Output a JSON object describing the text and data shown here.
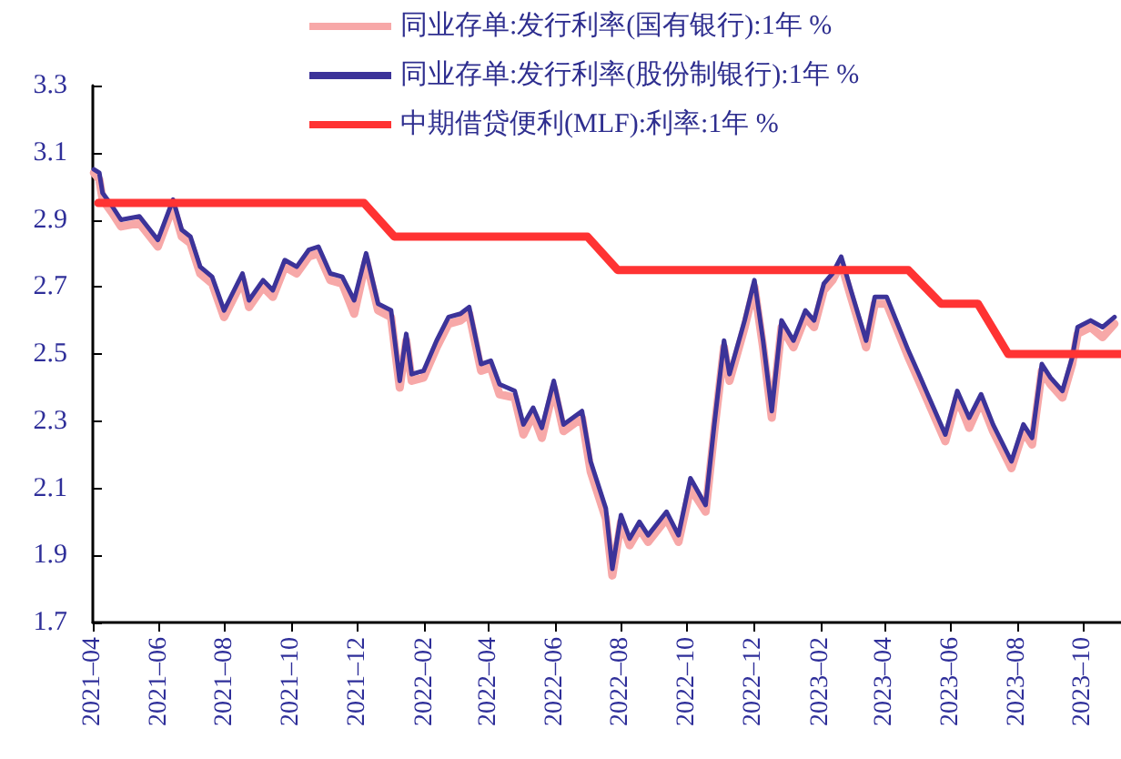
{
  "chart_data": {
    "type": "line",
    "xlim": [
      "2021-04-01",
      "2023-11-05"
    ],
    "ylim": [
      1.7,
      3.3
    ],
    "yticks": [
      1.7,
      1.9,
      2.1,
      2.3,
      2.5,
      2.7,
      2.9,
      3.1,
      3.3
    ],
    "xticks": [
      {
        "value": "2021-04",
        "label": "2021–04"
      },
      {
        "value": "2021-06",
        "label": "2021–06"
      },
      {
        "value": "2021-08",
        "label": "2021–08"
      },
      {
        "value": "2021-10",
        "label": "2021–10"
      },
      {
        "value": "2021-12",
        "label": "2021–12"
      },
      {
        "value": "2022-02",
        "label": "2022–02"
      },
      {
        "value": "2022-04",
        "label": "2022–04"
      },
      {
        "value": "2022-06",
        "label": "2022–06"
      },
      {
        "value": "2022-08",
        "label": "2022–08"
      },
      {
        "value": "2022-10",
        "label": "2022–10"
      },
      {
        "value": "2022-12",
        "label": "2022–12"
      },
      {
        "value": "2023-02",
        "label": "2023–02"
      },
      {
        "value": "2023-04",
        "label": "2023–04"
      },
      {
        "value": "2023-06",
        "label": "2023–06"
      },
      {
        "value": "2023-08",
        "label": "2023–08"
      },
      {
        "value": "2023-10",
        "label": "2023–10"
      }
    ],
    "x": [
      "2021-04-02",
      "2021-04-07",
      "2021-04-10",
      "2021-04-19",
      "2021-04-27",
      "2021-05-14",
      "2021-05-31",
      "2021-06-14",
      "2021-06-22",
      "2021-06-30",
      "2021-07-09",
      "2021-07-20",
      "2021-07-31",
      "2021-08-17",
      "2021-08-23",
      "2021-09-05",
      "2021-09-14",
      "2021-09-25",
      "2021-10-06",
      "2021-10-17",
      "2021-10-26",
      "2021-11-06",
      "2021-11-17",
      "2021-11-28",
      "2021-12-09",
      "2021-12-20",
      "2022-01-01",
      "2022-01-09",
      "2022-01-15",
      "2022-01-20",
      "2022-01-31",
      "2022-02-12",
      "2022-02-23",
      "2022-03-06",
      "2022-03-14",
      "2022-03-25",
      "2022-04-03",
      "2022-04-11",
      "2022-04-25",
      "2022-05-03",
      "2022-05-12",
      "2022-05-20",
      "2022-05-31",
      "2022-06-09",
      "2022-06-26",
      "2022-07-04",
      "2022-07-18",
      "2022-07-24",
      "2022-08-01",
      "2022-08-09",
      "2022-08-18",
      "2022-08-26",
      "2022-09-12",
      "2022-09-23",
      "2022-10-04",
      "2022-10-18",
      "2022-10-26",
      "2022-11-04",
      "2022-11-09",
      "2022-11-23",
      "2022-12-02",
      "2022-12-10",
      "2022-12-18",
      "2022-12-27",
      "2023-01-07",
      "2023-01-18",
      "2023-01-26",
      "2023-02-04",
      "2023-02-12",
      "2023-02-20",
      "2023-03-01",
      "2023-03-15",
      "2023-03-23",
      "2023-04-03",
      "2023-04-23",
      "2023-05-04",
      "2023-05-27",
      "2023-06-07",
      "2023-06-18",
      "2023-06-29",
      "2023-07-10",
      "2023-07-27",
      "2023-08-07",
      "2023-08-15",
      "2023-08-24",
      "2023-09-01",
      "2023-09-12",
      "2023-09-21",
      "2023-09-26",
      "2023-10-08",
      "2023-10-19",
      "2023-10-30"
    ],
    "series": [
      {
        "name": "同业存单:发行利率(国有银行):1年 %",
        "color": "#f7a8a8",
        "values": [
          3.04,
          3.02,
          2.96,
          2.92,
          2.88,
          2.89,
          2.82,
          2.94,
          2.85,
          2.83,
          2.74,
          2.71,
          2.61,
          2.72,
          2.64,
          2.7,
          2.67,
          2.76,
          2.74,
          2.79,
          2.8,
          2.72,
          2.71,
          2.62,
          2.78,
          2.63,
          2.61,
          2.4,
          2.54,
          2.42,
          2.43,
          2.52,
          2.59,
          2.6,
          2.62,
          2.45,
          2.46,
          2.38,
          2.37,
          2.26,
          2.32,
          2.25,
          2.4,
          2.27,
          2.31,
          2.15,
          2.01,
          1.84,
          2.0,
          1.93,
          1.98,
          1.94,
          2.01,
          1.94,
          2.1,
          2.03,
          2.27,
          2.52,
          2.42,
          2.58,
          2.7,
          2.52,
          2.31,
          2.58,
          2.52,
          2.61,
          2.58,
          2.69,
          2.72,
          2.77,
          2.67,
          2.52,
          2.65,
          2.65,
          2.49,
          2.41,
          2.24,
          2.37,
          2.28,
          2.36,
          2.27,
          2.16,
          2.27,
          2.23,
          2.45,
          2.41,
          2.37,
          2.47,
          2.56,
          2.58,
          2.55,
          2.59
        ]
      },
      {
        "name": "同业存单:发行利率(股份制银行):1年 %",
        "color": "#3c3399",
        "values": [
          3.05,
          3.04,
          2.98,
          2.94,
          2.9,
          2.91,
          2.84,
          2.96,
          2.87,
          2.85,
          2.76,
          2.73,
          2.63,
          2.74,
          2.66,
          2.72,
          2.69,
          2.78,
          2.76,
          2.81,
          2.82,
          2.74,
          2.73,
          2.66,
          2.8,
          2.65,
          2.63,
          2.42,
          2.56,
          2.44,
          2.45,
          2.54,
          2.61,
          2.62,
          2.64,
          2.47,
          2.48,
          2.41,
          2.39,
          2.29,
          2.34,
          2.28,
          2.42,
          2.29,
          2.33,
          2.18,
          2.04,
          1.86,
          2.02,
          1.95,
          2.0,
          1.96,
          2.03,
          1.96,
          2.13,
          2.05,
          2.29,
          2.54,
          2.44,
          2.6,
          2.72,
          2.54,
          2.33,
          2.6,
          2.54,
          2.63,
          2.6,
          2.71,
          2.74,
          2.79,
          2.69,
          2.54,
          2.67,
          2.67,
          2.51,
          2.43,
          2.26,
          2.39,
          2.31,
          2.38,
          2.29,
          2.18,
          2.29,
          2.25,
          2.47,
          2.43,
          2.39,
          2.49,
          2.58,
          2.6,
          2.58,
          2.61
        ]
      },
      {
        "name": "中期借贷便利(MLF):利率:1年 %",
        "color": "#ff3333",
        "x": [
          "2021-04-06",
          "2021-12-07",
          "2022-01-04",
          "2022-07-01",
          "2022-07-29",
          "2023-04-23",
          "2023-05-23",
          "2023-06-26",
          "2023-07-24",
          "2023-11-05"
        ],
        "values": [
          2.95,
          2.95,
          2.85,
          2.85,
          2.75,
          2.75,
          2.65,
          2.65,
          2.5,
          2.5
        ]
      }
    ],
    "legend": "top",
    "grid": false,
    "marker": "none",
    "line_style": "solid"
  }
}
